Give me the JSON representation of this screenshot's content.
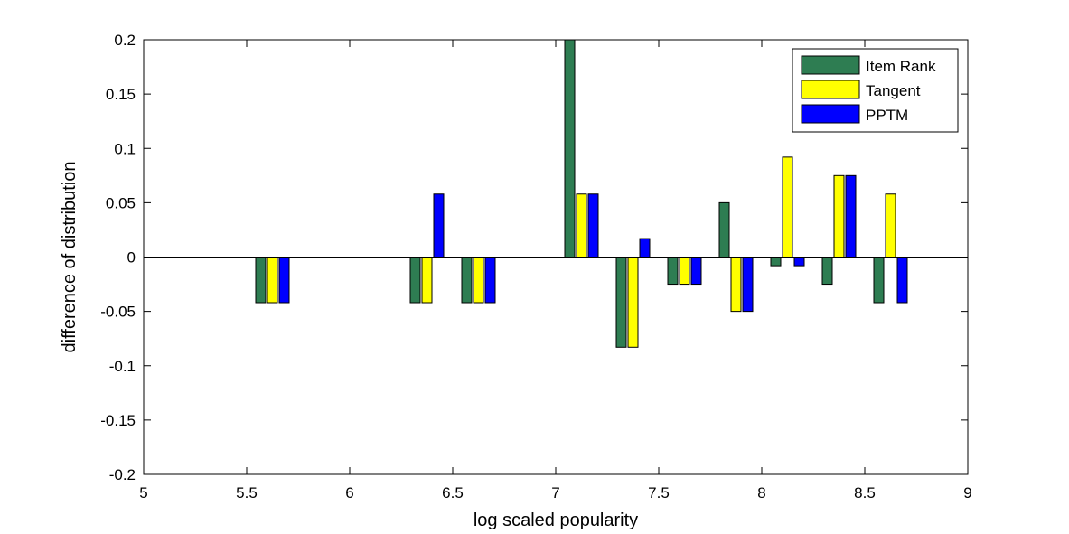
{
  "chart_data": {
    "type": "bar",
    "xlabel": "log scaled popularity",
    "ylabel": "difference of distribution",
    "xlim": [
      5,
      9
    ],
    "ylim": [
      -0.2,
      0.2
    ],
    "xticks": [
      5,
      5.5,
      6,
      6.5,
      7,
      7.5,
      8,
      8.5,
      9
    ],
    "xtick_labels": [
      "5",
      "5.5",
      "6",
      "6.5",
      "7",
      "7.5",
      "8",
      "8.5",
      "9"
    ],
    "yticks": [
      -0.2,
      -0.15,
      -0.1,
      -0.05,
      0,
      0.05,
      0.1,
      0.15,
      0.2
    ],
    "ytick_labels": [
      "-0.2",
      "-0.15",
      "-0.1",
      "-0.05",
      "0",
      "0.05",
      "0.1",
      "0.15",
      "0.2"
    ],
    "grid": false,
    "legend_position": "top-right",
    "x": [
      5.625,
      6.375,
      6.625,
      7.125,
      7.375,
      7.625,
      7.875,
      8.125,
      8.375,
      8.625
    ],
    "series": [
      {
        "name": "Item Rank",
        "color": "#2e7d52",
        "values": [
          -0.042,
          -0.042,
          -0.042,
          0.2,
          -0.083,
          -0.025,
          0.05,
          -0.008,
          -0.025,
          -0.042
        ]
      },
      {
        "name": "Tangent",
        "color": "#ffff00",
        "values": [
          -0.042,
          -0.042,
          -0.042,
          0.058,
          -0.083,
          -0.025,
          -0.05,
          0.092,
          0.075,
          0.058
        ]
      },
      {
        "name": "PPTM",
        "color": "#0000ff",
        "values": [
          -0.042,
          0.058,
          -0.042,
          0.058,
          0.017,
          -0.025,
          -0.05,
          -0.008,
          0.075,
          -0.042
        ]
      }
    ]
  }
}
